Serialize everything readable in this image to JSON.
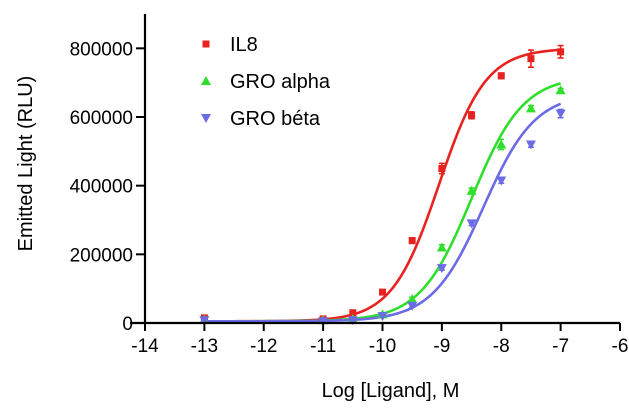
{
  "chart_data": {
    "type": "scatter",
    "title": "",
    "xlabel": "Log [Ligand], M",
    "ylabel": "Emitted Light (RLU)",
    "xlim": [
      -14,
      -6
    ],
    "ylim": [
      0,
      900000
    ],
    "x_ticks": [
      -14,
      -13,
      -12,
      -11,
      -10,
      -9,
      -8,
      -7,
      -6
    ],
    "y_ticks": [
      0,
      200000,
      400000,
      600000,
      800000
    ],
    "x_tick_labels": [
      "-14",
      "-13",
      "-12",
      "-11",
      "-10",
      "-9",
      "-8",
      "-7",
      "-6"
    ],
    "y_tick_labels": [
      "0",
      "200000",
      "400000",
      "600000",
      "800000"
    ],
    "grid": false,
    "legend_position": "top-left",
    "series": [
      {
        "name": "IL8",
        "color": "#e8231f",
        "marker": "square",
        "x": [
          -13,
          -11,
          -10.5,
          -10,
          -9.5,
          -9,
          -8.5,
          -8,
          -7.5,
          -7
        ],
        "y": [
          15000,
          12000,
          30000,
          90000,
          240000,
          450000,
          605000,
          720000,
          770000,
          790000
        ],
        "err": [
          5000,
          3000,
          4000,
          6000,
          8000,
          15000,
          10000,
          8000,
          25000,
          18000
        ],
        "fit": {
          "bottom": 5000,
          "top": 800000,
          "logEC50": -9.05,
          "hill": 1.1
        }
      },
      {
        "name": "GRO alpha",
        "color": "#2fdf2c",
        "marker": "triangle-up",
        "x": [
          -13,
          -11,
          -10.5,
          -10,
          -9.5,
          -9,
          -8.5,
          -8,
          -7.5,
          -7
        ],
        "y": [
          10000,
          8000,
          12000,
          25000,
          70000,
          220000,
          385000,
          520000,
          625000,
          678000
        ],
        "err": [
          3000,
          2000,
          3000,
          4000,
          5000,
          8000,
          8000,
          15000,
          8000,
          5000
        ],
        "fit": {
          "bottom": 5000,
          "top": 720000,
          "logEC50": -8.5,
          "hill": 1.0
        }
      },
      {
        "name": "GRO béta",
        "color": "#6b6be6",
        "marker": "triangle-down",
        "x": [
          -13,
          -11,
          -10.5,
          -10,
          -9.5,
          -9,
          -8.5,
          -8,
          -7.5,
          -7
        ],
        "y": [
          8000,
          5000,
          8000,
          20000,
          50000,
          160000,
          290000,
          415000,
          520000,
          610000
        ],
        "err": [
          3000,
          2000,
          3000,
          3000,
          4000,
          6000,
          6000,
          8000,
          8000,
          12000
        ],
        "fit": {
          "bottom": 5000,
          "top": 670000,
          "logEC50": -8.3,
          "hill": 1.0
        }
      }
    ]
  }
}
